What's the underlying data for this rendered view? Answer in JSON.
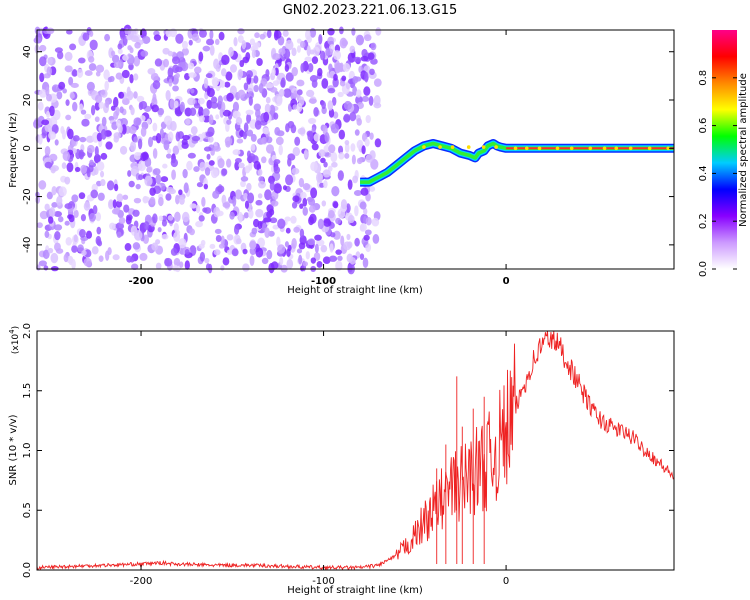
{
  "title": "GN02.2023.221.06.13.G15",
  "chart_data": [
    {
      "type": "heatmap",
      "xlabel": "Height of straight line (km)",
      "ylabel": "Frequency (Hz)",
      "xlim": [
        -257,
        92
      ],
      "ylim": [
        -50,
        49
      ],
      "x_ticks": [
        -200,
        -100,
        0
      ],
      "x_tick_labels": [
        "-200",
        "-100",
        "0"
      ],
      "y_ticks": [
        -40,
        -20,
        0,
        20,
        40
      ],
      "y_tick_labels": [
        "-40",
        "-20",
        "0",
        "20",
        "40"
      ],
      "colorbar": {
        "label": "Normalized spectral amplitude",
        "range": [
          0,
          1
        ],
        "ticks": [
          0.0,
          0.2,
          0.4,
          0.6,
          0.8
        ],
        "tick_labels": [
          "0.0",
          "0.2",
          "0.4",
          "0.6",
          "0.8"
        ],
        "colors": [
          "#ffffff",
          "#cc99ff",
          "#8800ff",
          "#0000ff",
          "#00ccff",
          "#00ff00",
          "#ffff00",
          "#ff8800",
          "#ff0000",
          "#ff0088"
        ]
      },
      "noise_region_x": [
        -257,
        -70
      ],
      "ridge": {
        "x": [
          -80,
          -75,
          -70,
          -65,
          -60,
          -55,
          -50,
          -45,
          -40,
          -35,
          -30,
          -25,
          -20,
          -17,
          -15,
          -12,
          -10,
          -7,
          -5,
          -3,
          0,
          10,
          20,
          40,
          60,
          80,
          92
        ],
        "y": [
          -14,
          -14,
          -12,
          -10,
          -7,
          -4,
          -1,
          1,
          2,
          1,
          0,
          -2,
          -3,
          -4,
          -2,
          -1,
          1,
          2,
          1,
          0.5,
          0,
          0,
          0,
          0,
          0,
          0,
          0
        ]
      },
      "grid": false
    },
    {
      "type": "line",
      "xlabel": "Height of straight line (km)",
      "ylabel": "SNR (10 * v/v)",
      "y_multiplier": "(x10",
      "y_multiplier_exp": "4",
      "y_multiplier_close": ")",
      "xlim": [
        -257,
        92
      ],
      "ylim": [
        0,
        2.0
      ],
      "x_ticks": [
        -200,
        -100,
        0
      ],
      "x_tick_labels": [
        "-200",
        "-100",
        "0"
      ],
      "y_ticks": [
        0.0,
        0.5,
        1.0,
        1.5,
        2.0
      ],
      "y_tick_labels": [
        "0.0",
        "0.5",
        "1.0",
        "1.5",
        "2.0"
      ],
      "series": [
        {
          "color": "#ee2222",
          "x": [
            -257,
            -240,
            -220,
            -200,
            -190,
            -180,
            -160,
            -140,
            -120,
            -100,
            -80,
            -70,
            -60,
            -55,
            -50,
            -45,
            -40,
            -35,
            -30,
            -25,
            -20,
            -15,
            -10,
            -5,
            0,
            5,
            10,
            15,
            20,
            25,
            30,
            35,
            40,
            45,
            50,
            55,
            60,
            65,
            70,
            75,
            80,
            85,
            92
          ],
          "y": [
            0.02,
            0.03,
            0.04,
            0.05,
            0.06,
            0.05,
            0.04,
            0.04,
            0.03,
            0.02,
            0.02,
            0.04,
            0.12,
            0.2,
            0.28,
            0.4,
            0.5,
            0.6,
            0.68,
            0.72,
            0.8,
            0.85,
            0.9,
            1.0,
            1.15,
            1.35,
            1.55,
            1.75,
            1.9,
            1.95,
            1.85,
            1.7,
            1.55,
            1.4,
            1.28,
            1.22,
            1.18,
            1.15,
            1.1,
            1.02,
            0.95,
            0.88,
            0.78
          ]
        }
      ],
      "grid": false
    }
  ]
}
